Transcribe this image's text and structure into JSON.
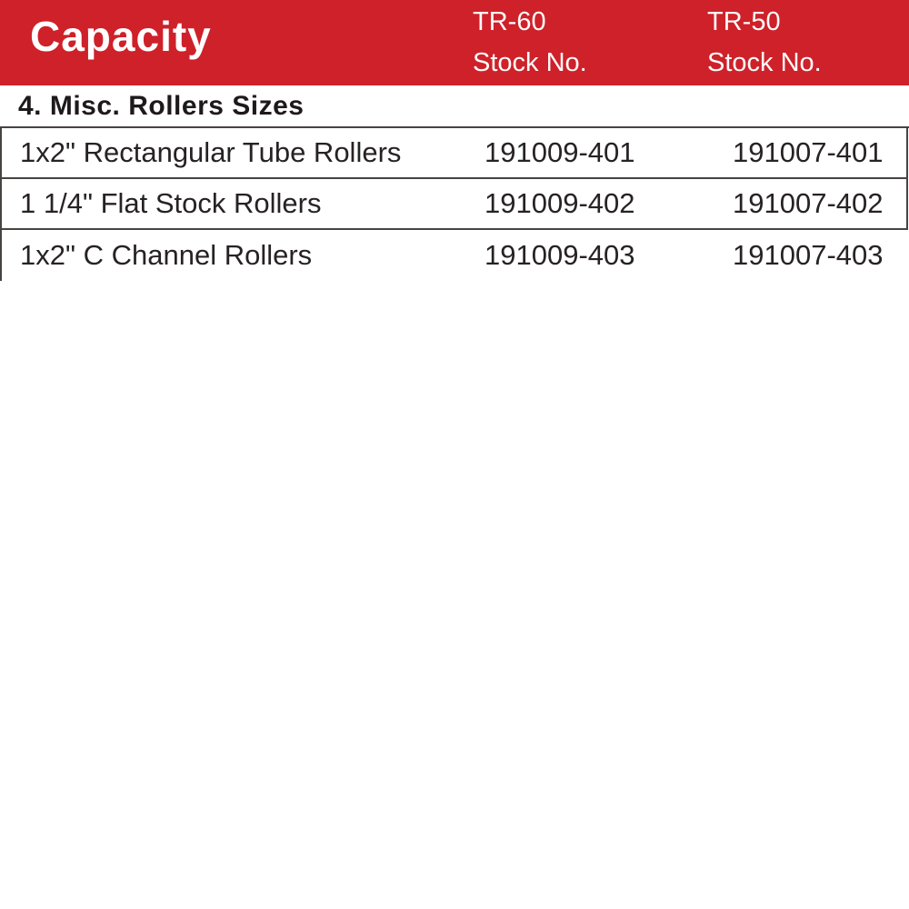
{
  "header": {
    "title": "Capacity",
    "bg_color": "#ce2129",
    "text_color": "#ffffff",
    "column_tr60": {
      "model": "TR-60",
      "label": "Stock No."
    },
    "column_tr50": {
      "model": "TR-50",
      "label": "Stock No."
    }
  },
  "section": {
    "title": "4. Misc. Rollers Sizes"
  },
  "table": {
    "columns": [
      "Capacity",
      "TR-60 Stock No.",
      "TR-50 Stock No."
    ],
    "rows": [
      {
        "name": "1x2\" Rectangular Tube Rollers",
        "tr60": "191009-401",
        "tr50": "191007-401"
      },
      {
        "name": "1 1/4\" Flat Stock Rollers",
        "tr60": "191009-402",
        "tr50": "191007-402"
      },
      {
        "name": "1x2\" C Channel Rollers",
        "tr60": "191009-403",
        "tr50": "191007-403"
      }
    ]
  },
  "colors": {
    "band_red": "#ce2129",
    "rule_gray": "#474342",
    "text_black": "#272223"
  }
}
